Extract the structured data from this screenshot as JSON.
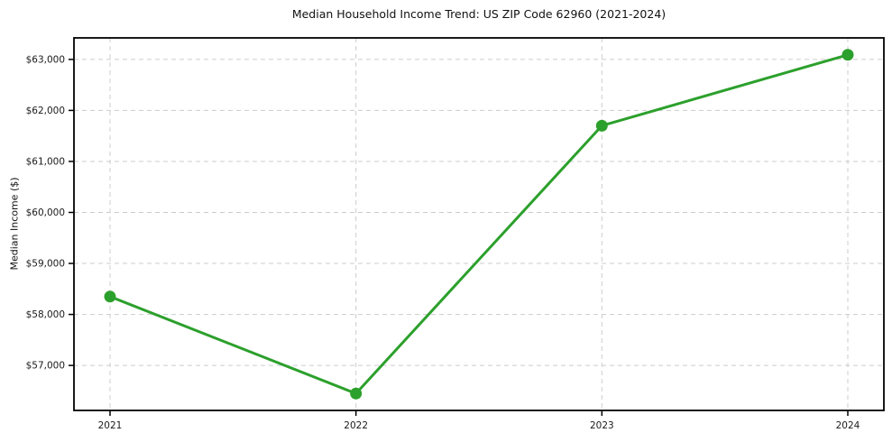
{
  "chart_data": {
    "type": "line",
    "title": "Median Household Income Trend: US ZIP Code 62960 (2021-2024)",
    "xlabel": "",
    "ylabel": "Median Income ($)",
    "x": [
      2021,
      2022,
      2023,
      2024
    ],
    "x_labels": [
      "2021",
      "2022",
      "2023",
      "2024"
    ],
    "values": [
      58350,
      56450,
      61700,
      63090
    ],
    "yticks": [
      57000,
      58000,
      59000,
      60000,
      61000,
      62000,
      63000
    ],
    "ytick_labels": [
      "$57,000",
      "$58,000",
      "$59,000",
      "$60,000",
      "$61,000",
      "$62,000",
      "$63,000"
    ],
    "ylim": [
      56118,
      63422
    ],
    "grid": true,
    "grid_style": "dashed",
    "legend": "none",
    "colors": {
      "line": "#2ca02c",
      "grid": "#cccccc",
      "axis": "#000000",
      "text": "#1a1a1a",
      "background": "#ffffff"
    }
  }
}
